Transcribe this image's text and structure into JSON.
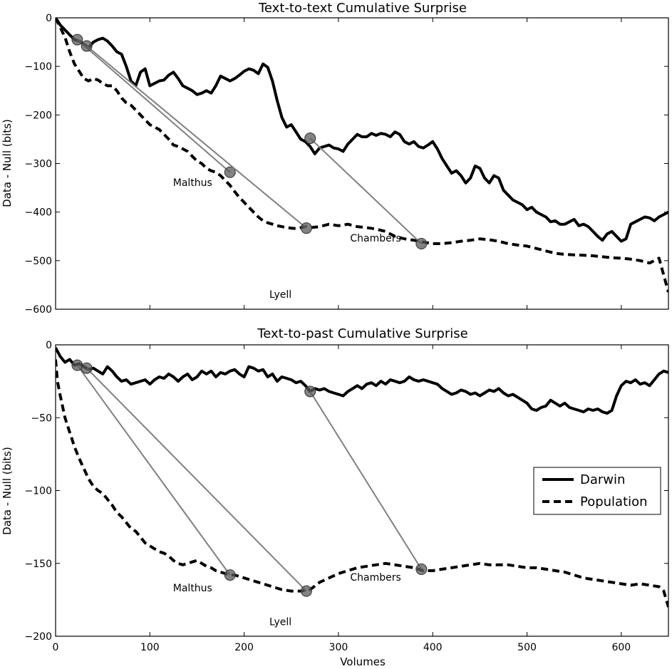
{
  "xlabel": "Volumes",
  "ylabel": "Data - Null (bits)",
  "colors": {
    "darwin": "#000000",
    "population": "#000000",
    "connector": "#808080",
    "marker": "#5a5a5a"
  },
  "legend": {
    "placement": "center-right",
    "panel": 1,
    "entries": [
      "Darwin",
      "Population"
    ]
  },
  "chart_data": [
    {
      "type": "line",
      "title": "Text-to-text Cumulative Surprise",
      "xlabel": "",
      "ylabel": "Data - Null (bits)",
      "xlim": [
        0,
        650
      ],
      "ylim": [
        -600,
        0
      ],
      "xticks": [
        0,
        100,
        200,
        300,
        400,
        500,
        600
      ],
      "yticks": [
        0,
        -100,
        -200,
        -300,
        -400,
        -500,
        -600
      ],
      "grid": false,
      "series": [
        {
          "name": "Darwin",
          "style": "solid",
          "x": [
            0,
            5,
            10,
            15,
            20,
            25,
            30,
            35,
            40,
            45,
            50,
            55,
            60,
            65,
            70,
            75,
            80,
            85,
            90,
            95,
            100,
            105,
            110,
            115,
            120,
            125,
            130,
            135,
            140,
            145,
            150,
            155,
            160,
            165,
            170,
            175,
            180,
            185,
            190,
            195,
            200,
            205,
            210,
            215,
            220,
            225,
            230,
            235,
            240,
            245,
            250,
            255,
            260,
            265,
            270,
            275,
            280,
            285,
            290,
            295,
            300,
            305,
            310,
            315,
            320,
            325,
            330,
            335,
            340,
            345,
            350,
            355,
            360,
            365,
            370,
            375,
            380,
            385,
            390,
            395,
            400,
            405,
            410,
            415,
            420,
            425,
            430,
            435,
            440,
            445,
            450,
            455,
            460,
            465,
            470,
            475,
            480,
            485,
            490,
            495,
            500,
            505,
            510,
            515,
            520,
            525,
            530,
            535,
            540,
            545,
            550,
            555,
            560,
            565,
            570,
            575,
            580,
            585,
            590,
            595,
            600,
            605,
            610,
            615,
            620,
            625,
            630,
            635,
            640,
            645,
            650
          ],
          "y": [
            0,
            -15,
            -25,
            -35,
            -45,
            -48,
            -55,
            -62,
            -50,
            -45,
            -42,
            -48,
            -58,
            -70,
            -75,
            -100,
            -130,
            -140,
            -112,
            -105,
            -140,
            -135,
            -130,
            -128,
            -118,
            -112,
            -125,
            -140,
            -145,
            -150,
            -158,
            -155,
            -150,
            -155,
            -140,
            -120,
            -125,
            -130,
            -125,
            -118,
            -110,
            -105,
            -108,
            -115,
            -95,
            -102,
            -130,
            -170,
            -205,
            -225,
            -220,
            -235,
            -250,
            -255,
            -265,
            -280,
            -268,
            -265,
            -262,
            -268,
            -270,
            -275,
            -260,
            -250,
            -240,
            -245,
            -245,
            -238,
            -242,
            -238,
            -240,
            -245,
            -235,
            -240,
            -255,
            -260,
            -255,
            -265,
            -268,
            -262,
            -255,
            -270,
            -290,
            -305,
            -320,
            -315,
            -325,
            -340,
            -330,
            -305,
            -310,
            -330,
            -340,
            -325,
            -330,
            -355,
            -365,
            -375,
            -380,
            -385,
            -395,
            -390,
            -400,
            -405,
            -410,
            -420,
            -418,
            -425,
            -425,
            -420,
            -415,
            -428,
            -425,
            -430,
            -440,
            -450,
            -458,
            -445,
            -440,
            -450,
            -460,
            -455,
            -425,
            -420,
            -415,
            -410,
            -412,
            -418,
            -410,
            -405,
            -400
          ]
        },
        {
          "name": "Population",
          "style": "dashed",
          "x": [
            0,
            5,
            10,
            15,
            20,
            25,
            30,
            35,
            40,
            45,
            50,
            55,
            60,
            65,
            70,
            75,
            80,
            85,
            90,
            95,
            100,
            105,
            110,
            115,
            120,
            125,
            130,
            135,
            140,
            145,
            150,
            155,
            160,
            165,
            170,
            175,
            180,
            185,
            190,
            195,
            200,
            205,
            210,
            215,
            220,
            225,
            230,
            235,
            240,
            245,
            250,
            255,
            260,
            265,
            270,
            280,
            290,
            300,
            310,
            320,
            330,
            340,
            350,
            360,
            370,
            380,
            390,
            400,
            410,
            420,
            430,
            440,
            450,
            460,
            470,
            480,
            490,
            500,
            510,
            520,
            530,
            540,
            550,
            560,
            570,
            580,
            590,
            600,
            610,
            620,
            630,
            640,
            645,
            650
          ],
          "y": [
            0,
            -20,
            -40,
            -70,
            -95,
            -110,
            -125,
            -130,
            -125,
            -128,
            -135,
            -140,
            -140,
            -150,
            -165,
            -175,
            -180,
            -190,
            -200,
            -210,
            -220,
            -225,
            -230,
            -240,
            -250,
            -262,
            -265,
            -270,
            -275,
            -285,
            -295,
            -300,
            -310,
            -315,
            -318,
            -325,
            -335,
            -345,
            -358,
            -370,
            -380,
            -390,
            -400,
            -410,
            -418,
            -422,
            -425,
            -428,
            -430,
            -432,
            -433,
            -434,
            -432,
            -430,
            -432,
            -430,
            -425,
            -428,
            -425,
            -430,
            -432,
            -435,
            -440,
            -450,
            -455,
            -458,
            -462,
            -465,
            -465,
            -463,
            -460,
            -458,
            -455,
            -457,
            -460,
            -465,
            -468,
            -470,
            -475,
            -480,
            -485,
            -487,
            -488,
            -489,
            -490,
            -492,
            -494,
            -495,
            -497,
            -500,
            -505,
            -495,
            -530,
            -565
          ]
        }
      ],
      "annotations": [
        {
          "label": "Malthus",
          "darwin_x": 23,
          "darwin_y": -45,
          "population_x": 185,
          "population_y": -318
        },
        {
          "label": "Lyell",
          "darwin_x": 33,
          "darwin_y": -58,
          "population_x": 266,
          "population_y": -433
        },
        {
          "label": "Chambers",
          "darwin_x": 270,
          "darwin_y": -248,
          "population_x": 388,
          "population_y": -465
        }
      ]
    },
    {
      "type": "line",
      "title": "Text-to-past Cumulative Surprise",
      "xlabel": "Volumes",
      "ylabel": "Data - Null (bits)",
      "xlim": [
        0,
        650
      ],
      "ylim": [
        -200,
        0
      ],
      "xticks": [
        0,
        100,
        200,
        300,
        400,
        500,
        600
      ],
      "yticks": [
        0,
        -50,
        -100,
        -150,
        -200
      ],
      "grid": false,
      "series": [
        {
          "name": "Darwin",
          "style": "solid",
          "x": [
            0,
            5,
            10,
            15,
            20,
            25,
            30,
            35,
            40,
            45,
            50,
            55,
            60,
            65,
            70,
            75,
            80,
            85,
            90,
            95,
            100,
            105,
            110,
            115,
            120,
            125,
            130,
            135,
            140,
            145,
            150,
            155,
            160,
            165,
            170,
            175,
            180,
            185,
            190,
            195,
            200,
            205,
            210,
            215,
            220,
            225,
            230,
            235,
            240,
            245,
            250,
            255,
            260,
            265,
            270,
            275,
            280,
            285,
            290,
            295,
            300,
            305,
            310,
            315,
            320,
            325,
            330,
            335,
            340,
            345,
            350,
            355,
            360,
            365,
            370,
            375,
            380,
            385,
            390,
            395,
            400,
            405,
            410,
            415,
            420,
            425,
            430,
            435,
            440,
            445,
            450,
            455,
            460,
            465,
            470,
            475,
            480,
            485,
            490,
            495,
            500,
            505,
            510,
            515,
            520,
            525,
            530,
            535,
            540,
            545,
            550,
            555,
            560,
            565,
            570,
            575,
            580,
            585,
            590,
            595,
            600,
            605,
            610,
            615,
            620,
            625,
            630,
            635,
            640,
            645,
            650
          ],
          "y": [
            -2,
            -8,
            -12,
            -10,
            -14,
            -13,
            -15,
            -17,
            -16,
            -18,
            -20,
            -15,
            -18,
            -22,
            -25,
            -24,
            -27,
            -26,
            -25,
            -24,
            -27,
            -24,
            -22,
            -23,
            -20,
            -22,
            -25,
            -22,
            -20,
            -24,
            -22,
            -18,
            -20,
            -18,
            -22,
            -19,
            -20,
            -18,
            -17,
            -20,
            -22,
            -15,
            -16,
            -18,
            -17,
            -22,
            -20,
            -25,
            -22,
            -23,
            -24,
            -26,
            -25,
            -28,
            -32,
            -30,
            -31,
            -30,
            -32,
            -33,
            -34,
            -35,
            -32,
            -30,
            -28,
            -30,
            -27,
            -26,
            -28,
            -25,
            -27,
            -24,
            -25,
            -26,
            -25,
            -22,
            -24,
            -25,
            -24,
            -25,
            -26,
            -27,
            -30,
            -32,
            -34,
            -33,
            -31,
            -32,
            -34,
            -33,
            -35,
            -33,
            -31,
            -32,
            -30,
            -33,
            -35,
            -34,
            -36,
            -38,
            -40,
            -44,
            -45,
            -43,
            -42,
            -38,
            -40,
            -42,
            -40,
            -43,
            -44,
            -45,
            -46,
            -44,
            -45,
            -44,
            -46,
            -47,
            -45,
            -35,
            -28,
            -25,
            -26,
            -24,
            -27,
            -26,
            -28,
            -24,
            -20,
            -18,
            -19
          ]
        },
        {
          "name": "Population",
          "style": "dashed",
          "x": [
            0,
            2,
            5,
            10,
            15,
            20,
            25,
            30,
            35,
            40,
            45,
            50,
            55,
            60,
            65,
            70,
            75,
            80,
            85,
            90,
            95,
            100,
            105,
            110,
            115,
            120,
            125,
            130,
            135,
            140,
            145,
            150,
            155,
            160,
            165,
            170,
            175,
            180,
            185,
            190,
            200,
            210,
            220,
            230,
            240,
            250,
            260,
            270,
            280,
            290,
            300,
            310,
            320,
            330,
            340,
            350,
            360,
            370,
            380,
            390,
            400,
            410,
            420,
            430,
            440,
            450,
            460,
            470,
            480,
            490,
            500,
            510,
            520,
            530,
            540,
            550,
            560,
            570,
            580,
            590,
            600,
            610,
            620,
            630,
            640,
            645,
            650
          ],
          "y": [
            -10,
            -25,
            -35,
            -50,
            -60,
            -70,
            -78,
            -85,
            -92,
            -97,
            -100,
            -102,
            -106,
            -110,
            -115,
            -118,
            -122,
            -126,
            -128,
            -132,
            -136,
            -138,
            -140,
            -142,
            -143,
            -145,
            -148,
            -150,
            -151,
            -150,
            -149,
            -148,
            -150,
            -152,
            -153,
            -155,
            -156,
            -157,
            -158,
            -158,
            -160,
            -162,
            -164,
            -166,
            -168,
            -169,
            -169,
            -168,
            -163,
            -160,
            -157,
            -155,
            -153,
            -152,
            -151,
            -150,
            -151,
            -152,
            -153,
            -155,
            -155,
            -154,
            -153,
            -152,
            -151,
            -150,
            -151,
            -151,
            -151,
            -152,
            -153,
            -153,
            -154,
            -155,
            -156,
            -158,
            -160,
            -161,
            -162,
            -163,
            -164,
            -165,
            -164,
            -165,
            -166,
            -169,
            -180
          ]
        }
      ],
      "annotations": [
        {
          "label": "Malthus",
          "darwin_x": 23,
          "darwin_y": -14,
          "population_x": 185,
          "population_y": -158
        },
        {
          "label": "Lyell",
          "darwin_x": 33,
          "darwin_y": -16,
          "population_x": 266,
          "population_y": -169
        },
        {
          "label": "Chambers",
          "darwin_x": 270,
          "darwin_y": -32,
          "population_x": 388,
          "population_y": -154
        }
      ]
    }
  ]
}
